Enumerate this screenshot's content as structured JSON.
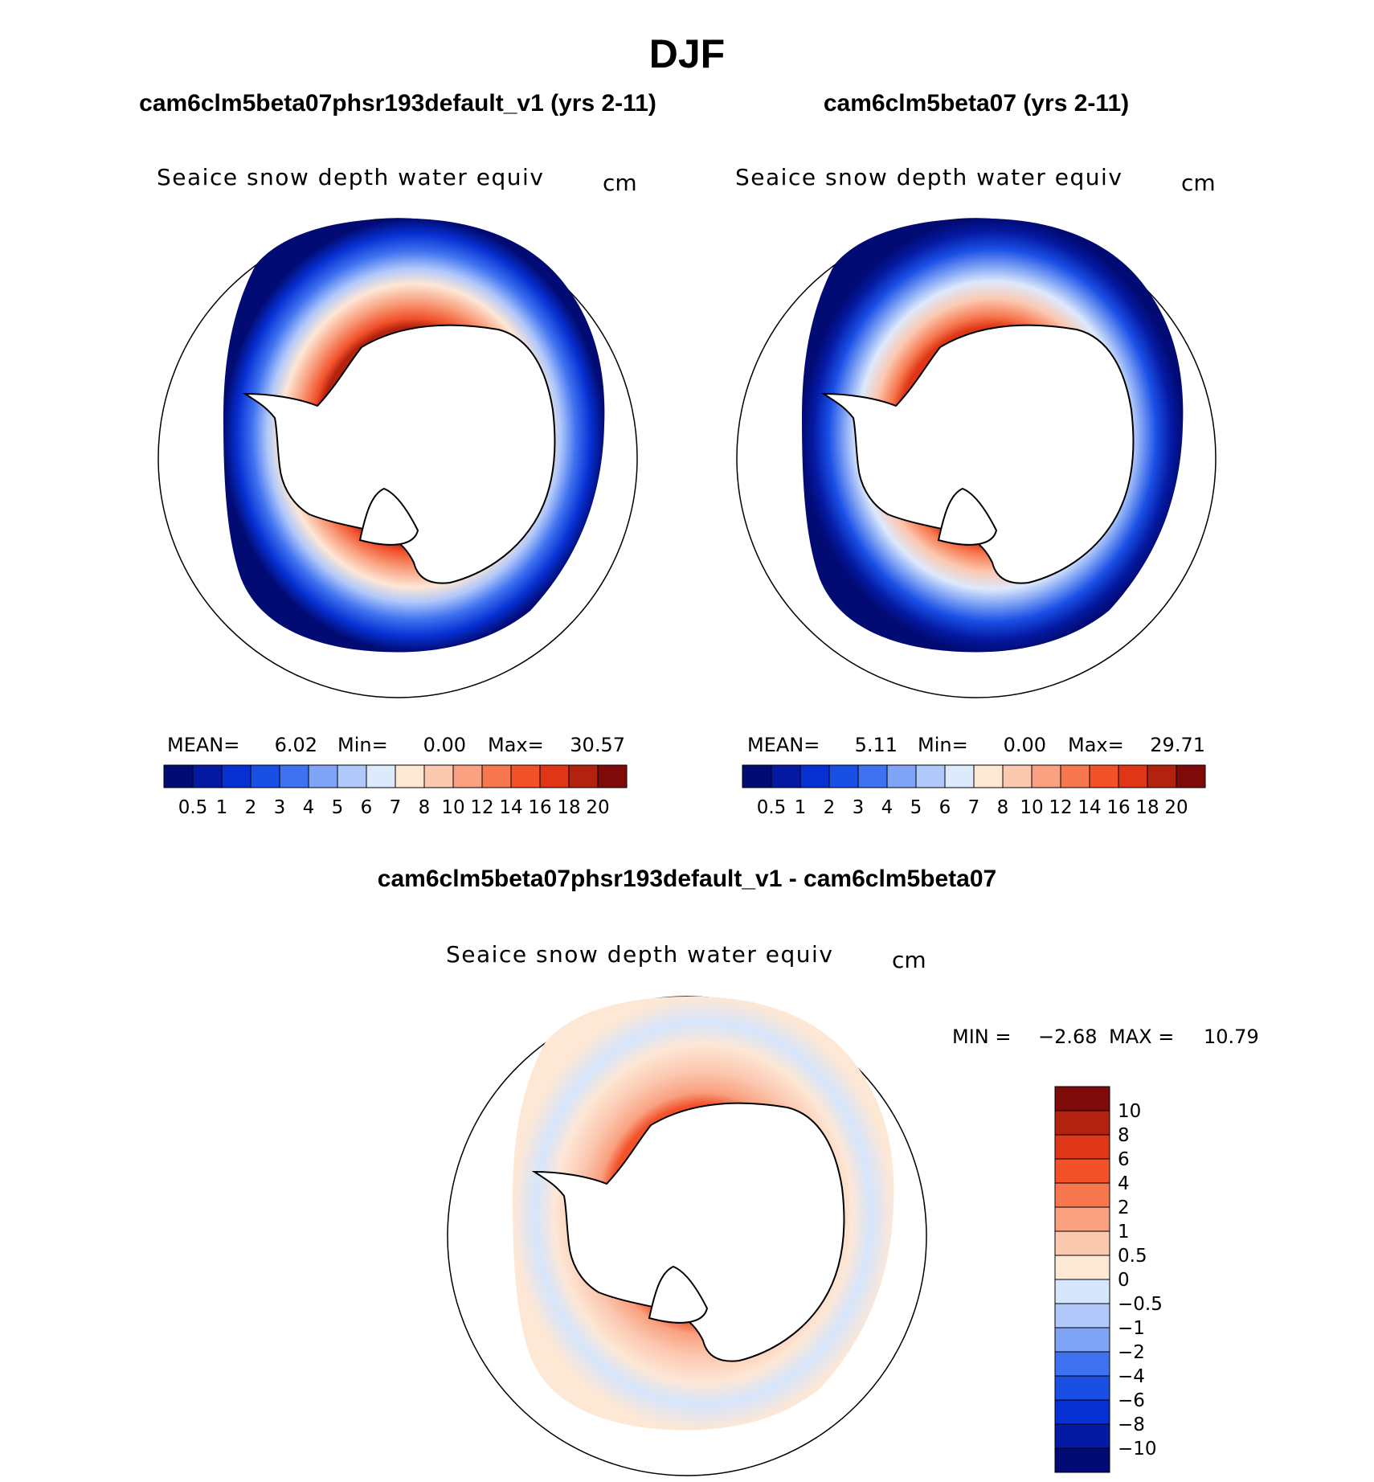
{
  "figure": {
    "main_title": "DJF"
  },
  "colors": {
    "abs_scale": [
      "#020b74",
      "#041aa3",
      "#0630d2",
      "#1a4fe6",
      "#3f72f0",
      "#7fa3f5",
      "#b0c8fa",
      "#dde9fc",
      "#fde7d5",
      "#fbc8b0",
      "#f9a180",
      "#f7784f",
      "#f2512a",
      "#de3616",
      "#b3220e",
      "#7f0a0a"
    ],
    "diff_scale": [
      "#020b74",
      "#041aa3",
      "#0630d2",
      "#1a4fe6",
      "#3f72f0",
      "#7fa3f5",
      "#b0c8fa",
      "#d6e6fc",
      "#fde7d5",
      "#fbc8b0",
      "#f9a180",
      "#f7784f",
      "#f2512a",
      "#de3616",
      "#b3220e",
      "#7f0a0a"
    ]
  },
  "chart_data": [
    {
      "type": "heatmap",
      "projection": "south-polar-stereographic",
      "panel_title": "cam6clm5beta07phsr193default_v1 (yrs 2-11)",
      "variable": "Seaice snow depth water equiv",
      "units": "cm",
      "stats": {
        "mean_label": "MEAN=",
        "mean": "6.02",
        "min_label": "Min=",
        "min": "0.00",
        "max_label": "Max=",
        "max": "30.57"
      },
      "colorbar_labels": [
        "0.5",
        "1",
        "2",
        "3",
        "4",
        "5",
        "6",
        "7",
        "8",
        "10",
        "12",
        "14",
        "16",
        "18",
        "20"
      ],
      "field_summary": {
        "outer_ice_edge": 0.5,
        "mid_pack": 5,
        "coastal_max": 20
      }
    },
    {
      "type": "heatmap",
      "projection": "south-polar-stereographic",
      "panel_title": "cam6clm5beta07 (yrs 2-11)",
      "variable": "Seaice snow depth water equiv",
      "units": "cm",
      "stats": {
        "mean_label": "MEAN=",
        "mean": "5.11",
        "min_label": "Min=",
        "min": "0.00",
        "max_label": "Max=",
        "max": "29.71"
      },
      "colorbar_labels": [
        "0.5",
        "1",
        "2",
        "3",
        "4",
        "5",
        "6",
        "7",
        "8",
        "10",
        "12",
        "14",
        "16",
        "18",
        "20"
      ],
      "field_summary": {
        "outer_ice_edge": 0.5,
        "mid_pack": 5,
        "coastal_max": 16
      }
    },
    {
      "type": "heatmap",
      "projection": "south-polar-stereographic",
      "panel_title": "cam6clm5beta07phsr193default_v1 - cam6clm5beta07",
      "variable": "Seaice snow depth water equiv",
      "units": "cm",
      "stats": {
        "min_label": "MIN =",
        "min": "−2.68",
        "max_label": "MAX =",
        "max": "10.79"
      },
      "colorbar_labels": [
        "10",
        "8",
        "6",
        "4",
        "2",
        "1",
        "0.5",
        "0",
        "−0.5",
        "−1",
        "−2",
        "−4",
        "−6",
        "−8",
        "−10"
      ]
    }
  ]
}
